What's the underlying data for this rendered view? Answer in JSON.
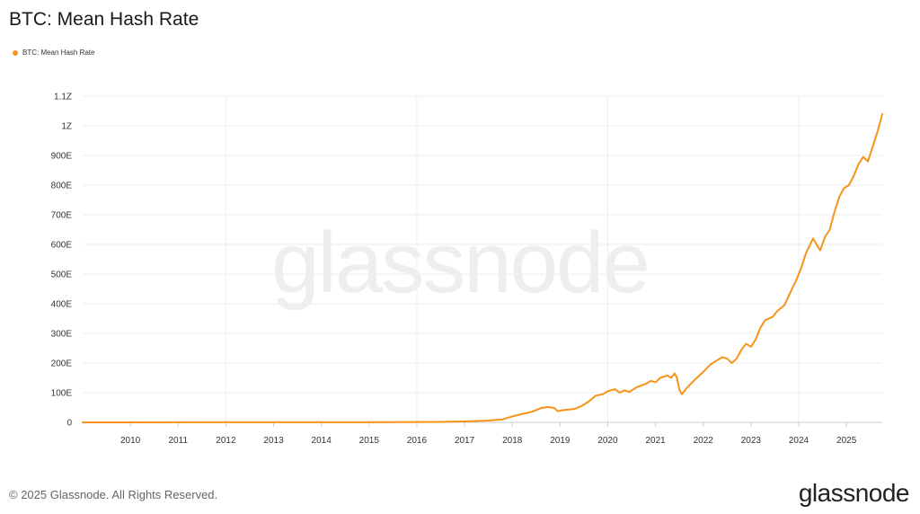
{
  "header": {
    "title": "BTC: Mean Hash Rate"
  },
  "legend": {
    "label": "BTC: Mean Hash Rate"
  },
  "footer": {
    "copyright": "© 2025 Glassnode. All Rights Reserved."
  },
  "brand": {
    "logo_text": "glassnode",
    "watermark_text": "glassnode"
  },
  "colors": {
    "series": "#f7931a",
    "grid": "#eeeeee",
    "axis": "#cccccc"
  },
  "chart_data": {
    "type": "line",
    "title": "BTC: Mean Hash Rate",
    "xlabel": "",
    "ylabel": "",
    "grid": true,
    "legend_position": "top-left",
    "xlim": [
      2009.0,
      2025.75
    ],
    "ylim": [
      0,
      1100
    ],
    "y_unit": "EH/s",
    "y_ticks": [
      0,
      100,
      200,
      300,
      400,
      500,
      600,
      700,
      800,
      900,
      1000,
      1100
    ],
    "y_tick_labels": [
      "0",
      "100E",
      "200E",
      "300E",
      "400E",
      "500E",
      "600E",
      "700E",
      "800E",
      "900E",
      "1Z",
      "1.1Z"
    ],
    "x_ticks": [
      2010,
      2011,
      2012,
      2013,
      2014,
      2015,
      2016,
      2017,
      2018,
      2019,
      2020,
      2021,
      2022,
      2023,
      2024,
      2025
    ],
    "x_tick_labels": [
      "2010",
      "2011",
      "2012",
      "2013",
      "2014",
      "2015",
      "2016",
      "2017",
      "2018",
      "2019",
      "2020",
      "2021",
      "2022",
      "2023",
      "2024",
      "2025"
    ],
    "x_gridlines": [
      2012,
      2016,
      2020,
      2024
    ],
    "series": [
      {
        "name": "BTC: Mean Hash Rate",
        "color": "#f7931a",
        "points": [
          [
            2009.0,
            0
          ],
          [
            2015.0,
            0.5
          ],
          [
            2016.0,
            1
          ],
          [
            2016.5,
            1.5
          ],
          [
            2017.0,
            3
          ],
          [
            2017.5,
            6
          ],
          [
            2017.8,
            10
          ],
          [
            2018.0,
            20
          ],
          [
            2018.2,
            28
          ],
          [
            2018.4,
            35
          ],
          [
            2018.6,
            48
          ],
          [
            2018.75,
            52
          ],
          [
            2018.88,
            48
          ],
          [
            2018.95,
            38
          ],
          [
            2019.1,
            42
          ],
          [
            2019.3,
            45
          ],
          [
            2019.45,
            55
          ],
          [
            2019.6,
            70
          ],
          [
            2019.75,
            90
          ],
          [
            2019.9,
            95
          ],
          [
            2020.0,
            105
          ],
          [
            2020.15,
            112
          ],
          [
            2020.25,
            100
          ],
          [
            2020.35,
            108
          ],
          [
            2020.45,
            102
          ],
          [
            2020.6,
            118
          ],
          [
            2020.8,
            130
          ],
          [
            2020.9,
            140
          ],
          [
            2021.0,
            135
          ],
          [
            2021.1,
            150
          ],
          [
            2021.25,
            158
          ],
          [
            2021.33,
            150
          ],
          [
            2021.4,
            165
          ],
          [
            2021.45,
            150
          ],
          [
            2021.5,
            110
          ],
          [
            2021.55,
            95
          ],
          [
            2021.65,
            115
          ],
          [
            2021.8,
            140
          ],
          [
            2022.0,
            170
          ],
          [
            2022.15,
            195
          ],
          [
            2022.3,
            210
          ],
          [
            2022.4,
            220
          ],
          [
            2022.5,
            215
          ],
          [
            2022.6,
            200
          ],
          [
            2022.7,
            215
          ],
          [
            2022.8,
            245
          ],
          [
            2022.9,
            265
          ],
          [
            2023.0,
            255
          ],
          [
            2023.1,
            280
          ],
          [
            2023.2,
            320
          ],
          [
            2023.3,
            345
          ],
          [
            2023.45,
            355
          ],
          [
            2023.55,
            375
          ],
          [
            2023.7,
            395
          ],
          [
            2023.8,
            430
          ],
          [
            2023.95,
            480
          ],
          [
            2024.05,
            520
          ],
          [
            2024.15,
            570
          ],
          [
            2024.3,
            620
          ],
          [
            2024.38,
            598
          ],
          [
            2024.45,
            580
          ],
          [
            2024.55,
            625
          ],
          [
            2024.65,
            650
          ],
          [
            2024.75,
            710
          ],
          [
            2024.85,
            760
          ],
          [
            2024.95,
            790
          ],
          [
            2025.05,
            800
          ],
          [
            2025.15,
            830
          ],
          [
            2025.25,
            870
          ],
          [
            2025.35,
            895
          ],
          [
            2025.45,
            880
          ],
          [
            2025.55,
            930
          ],
          [
            2025.65,
            980
          ],
          [
            2025.75,
            1040
          ]
        ]
      }
    ]
  }
}
